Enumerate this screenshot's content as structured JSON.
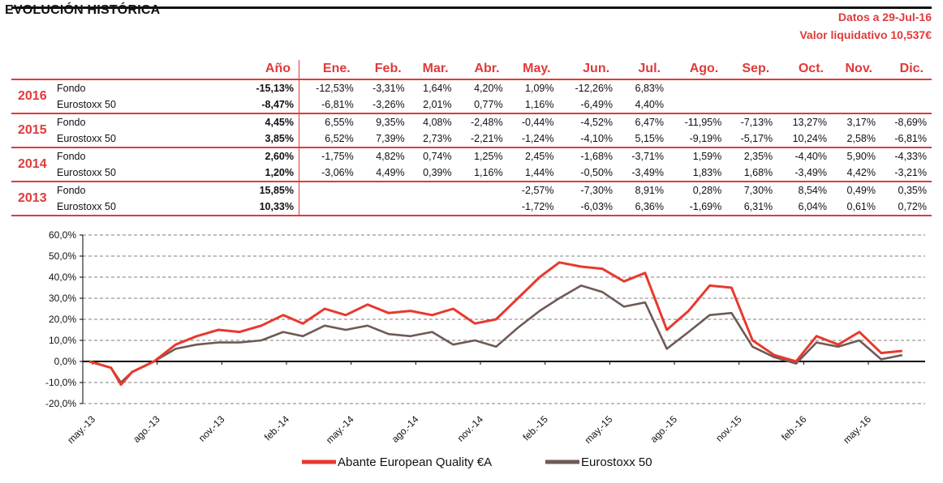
{
  "header": {
    "title": "EVOLUCIÓN HISTÓRICA",
    "date_line": "Datos a 29-Jul-16",
    "nav_line": "Valor liquidativo 10,537€"
  },
  "table": {
    "year_header": "Año",
    "months": [
      "Ene.",
      "Feb.",
      "Mar.",
      "Abr.",
      "May.",
      "Jun.",
      "Jul.",
      "Ago.",
      "Sep.",
      "Oct.",
      "Nov.",
      "Dic."
    ],
    "blocks": [
      {
        "year": "2016",
        "rows": [
          {
            "label": "Fondo",
            "annual": "-15,13%",
            "values": [
              "-12,53%",
              "-3,31%",
              "1,64%",
              "4,20%",
              "1,09%",
              "-12,26%",
              "6,83%",
              "",
              "",
              "",
              "",
              ""
            ]
          },
          {
            "label": "Eurostoxx 50",
            "annual": "-8,47%",
            "values": [
              "-6,81%",
              "-3,26%",
              "2,01%",
              "0,77%",
              "1,16%",
              "-6,49%",
              "4,40%",
              "",
              "",
              "",
              "",
              ""
            ]
          }
        ]
      },
      {
        "year": "2015",
        "rows": [
          {
            "label": "Fondo",
            "annual": "4,45%",
            "values": [
              "6,55%",
              "9,35%",
              "4,08%",
              "-2,48%",
              "-0,44%",
              "-4,52%",
              "6,47%",
              "-11,95%",
              "-7,13%",
              "13,27%",
              "3,17%",
              "-8,69%"
            ]
          },
          {
            "label": "Eurostoxx 50",
            "annual": "3,85%",
            "values": [
              "6,52%",
              "7,39%",
              "2,73%",
              "-2,21%",
              "-1,24%",
              "-4,10%",
              "5,15%",
              "-9,19%",
              "-5,17%",
              "10,24%",
              "2,58%",
              "-6,81%"
            ]
          }
        ]
      },
      {
        "year": "2014",
        "rows": [
          {
            "label": "Fondo",
            "annual": "2,60%",
            "values": [
              "-1,75%",
              "4,82%",
              "0,74%",
              "1,25%",
              "2,45%",
              "-1,68%",
              "-3,71%",
              "1,59%",
              "2,35%",
              "-4,40%",
              "5,90%",
              "-4,33%"
            ]
          },
          {
            "label": "Eurostoxx 50",
            "annual": "1,20%",
            "values": [
              "-3,06%",
              "4,49%",
              "0,39%",
              "1,16%",
              "1,44%",
              "-0,50%",
              "-3,49%",
              "1,83%",
              "1,68%",
              "-3,49%",
              "4,42%",
              "-3,21%"
            ]
          }
        ]
      },
      {
        "year": "2013",
        "rows": [
          {
            "label": "Fondo",
            "annual": "15,85%",
            "values": [
              "",
              "",
              "",
              "",
              "-2,57%",
              "-7,30%",
              "8,91%",
              "0,28%",
              "7,30%",
              "8,54%",
              "0,49%",
              "0,35%"
            ]
          },
          {
            "label": "Eurostoxx 50",
            "annual": "10,33%",
            "values": [
              "",
              "",
              "",
              "",
              "-1,72%",
              "-6,03%",
              "6,36%",
              "-1,69%",
              "6,31%",
              "6,04%",
              "0,61%",
              "0,72%"
            ]
          }
        ]
      }
    ]
  },
  "chart_data": {
    "type": "line",
    "title": "",
    "xlabel": "",
    "ylabel": "",
    "ylim": [
      -20,
      60
    ],
    "y_ticks": [
      "-20,0%",
      "-10,0%",
      "0,0%",
      "10,0%",
      "20,0%",
      "30,0%",
      "40,0%",
      "50,0%",
      "60,0%"
    ],
    "x_ticks": [
      "may.-13",
      "ago.-13",
      "nov.-13",
      "feb.-14",
      "may.-14",
      "ago.-14",
      "nov.-14",
      "feb.-15",
      "may.-15",
      "ago.-15",
      "nov.-15",
      "feb.-16",
      "may.-16"
    ],
    "grid": "horizontal dashed",
    "legend_position": "bottom",
    "series": [
      {
        "name": "Abante European Quality €A",
        "color": "#e8392e",
        "x": [
          "2013-05-01",
          "2013-06-01",
          "2013-06-15",
          "2013-07-01",
          "2013-08-01",
          "2013-09-01",
          "2013-10-01",
          "2013-11-01",
          "2013-12-01",
          "2014-01-01",
          "2014-02-01",
          "2014-03-01",
          "2014-04-01",
          "2014-05-01",
          "2014-06-01",
          "2014-07-01",
          "2014-08-01",
          "2014-09-01",
          "2014-10-01",
          "2014-11-01",
          "2014-12-01",
          "2015-01-01",
          "2015-02-01",
          "2015-03-01",
          "2015-04-01",
          "2015-05-01",
          "2015-06-01",
          "2015-07-01",
          "2015-08-01",
          "2015-09-01",
          "2015-10-01",
          "2015-11-01",
          "2015-12-01",
          "2016-01-01",
          "2016-02-01",
          "2016-03-01",
          "2016-04-01",
          "2016-05-01",
          "2016-06-01",
          "2016-07-01"
        ],
        "values": [
          0,
          -3,
          -11,
          -5,
          0,
          8,
          12,
          15,
          14,
          17,
          22,
          18,
          25,
          22,
          27,
          23,
          24,
          22,
          25,
          18,
          20,
          30,
          40,
          47,
          45,
          44,
          38,
          42,
          15,
          24,
          36,
          35,
          10,
          3,
          0,
          12,
          8,
          14,
          4,
          5
        ]
      },
      {
        "name": "Eurostoxx 50",
        "color": "#6e5a55",
        "x": [
          "2013-05-01",
          "2013-06-01",
          "2013-06-15",
          "2013-07-01",
          "2013-08-01",
          "2013-09-01",
          "2013-10-01",
          "2013-11-01",
          "2013-12-01",
          "2014-01-01",
          "2014-02-01",
          "2014-03-01",
          "2014-04-01",
          "2014-05-01",
          "2014-06-01",
          "2014-07-01",
          "2014-08-01",
          "2014-09-01",
          "2014-10-01",
          "2014-11-01",
          "2014-12-01",
          "2015-01-01",
          "2015-02-01",
          "2015-03-01",
          "2015-04-01",
          "2015-05-01",
          "2015-06-01",
          "2015-07-01",
          "2015-08-01",
          "2015-09-01",
          "2015-10-01",
          "2015-11-01",
          "2015-12-01",
          "2016-01-01",
          "2016-02-01",
          "2016-03-01",
          "2016-04-01",
          "2016-05-01",
          "2016-06-01",
          "2016-07-01"
        ],
        "values": [
          0,
          -3,
          -10,
          -5,
          0,
          6,
          8,
          9,
          9,
          10,
          14,
          12,
          17,
          15,
          17,
          13,
          12,
          14,
          8,
          10,
          7,
          16,
          24,
          30,
          36,
          33,
          26,
          28,
          6,
          14,
          22,
          23,
          7,
          2,
          -1,
          9,
          7,
          10,
          1,
          3
        ]
      }
    ]
  }
}
